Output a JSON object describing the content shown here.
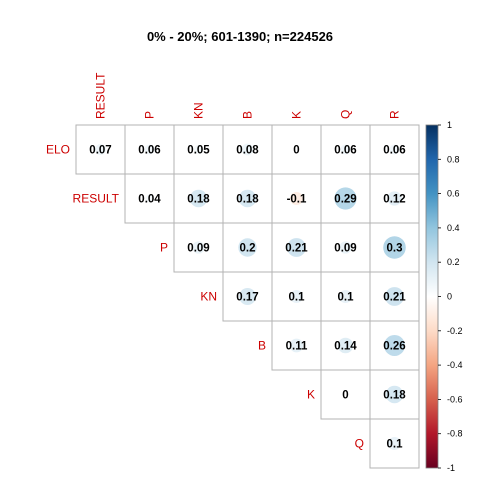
{
  "chart_data": {
    "type": "heatmap",
    "title": "0% - 20%; 601-1390; n=224526",
    "row_labels": [
      "ELO",
      "RESULT",
      "P",
      "KN",
      "B",
      "K",
      "Q"
    ],
    "col_labels": [
      "RESULT",
      "P",
      "KN",
      "B",
      "K",
      "Q",
      "R"
    ],
    "matrix": [
      [
        0.07,
        0.06,
        0.05,
        0.08,
        0,
        0.06,
        0.06
      ],
      [
        null,
        0.04,
        0.18,
        0.18,
        -0.1,
        0.29,
        0.12
      ],
      [
        null,
        null,
        0.09,
        0.2,
        0.21,
        0.09,
        0.3
      ],
      [
        null,
        null,
        null,
        0.17,
        0.1,
        0.1,
        0.21
      ],
      [
        null,
        null,
        null,
        null,
        0.11,
        0.14,
        0.26
      ],
      [
        null,
        null,
        null,
        null,
        null,
        0,
        0.18
      ],
      [
        null,
        null,
        null,
        null,
        null,
        null,
        0.1
      ]
    ],
    "colorbar": {
      "range": [
        -1,
        1
      ],
      "ticks": [
        "1",
        "0.8",
        "0.6",
        "0.4",
        "0.2",
        "0",
        "-0.2",
        "-0.4",
        "-0.6",
        "-0.8",
        "-1"
      ],
      "colors": [
        "#67001f",
        "#b2182b",
        "#d6604d",
        "#f4a582",
        "#fddbc7",
        "#ffffff",
        "#d1e5f0",
        "#92c5de",
        "#4393c3",
        "#2166ac",
        "#053061"
      ]
    }
  }
}
